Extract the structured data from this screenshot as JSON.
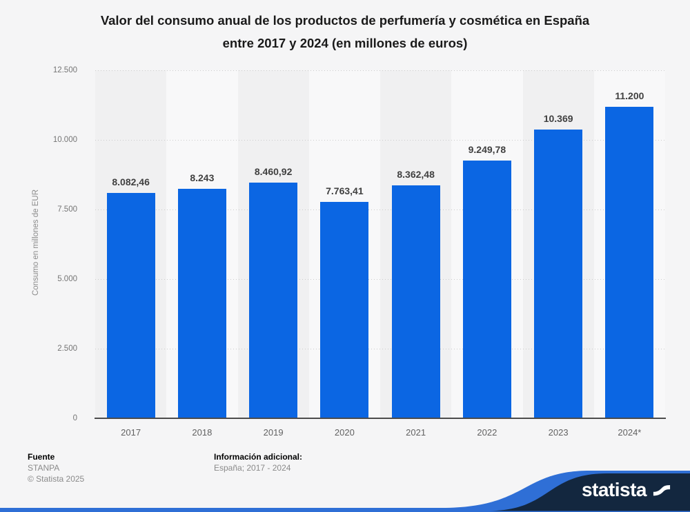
{
  "title": {
    "line1": "Valor del consumo anual de los productos de perfumería y cosmética en España",
    "line2": "entre 2017 y 2024 (en millones de euros)"
  },
  "chart_data": {
    "type": "bar",
    "title": "Valor del consumo anual de los productos de perfumería y cosmética en España entre 2017 y 2024 (en millones de euros)",
    "categories": [
      "2017",
      "2018",
      "2019",
      "2020",
      "2021",
      "2022",
      "2023",
      "2024*"
    ],
    "values": [
      8082.46,
      8243,
      8460.92,
      7763.41,
      8362.48,
      9249.78,
      10369,
      11200
    ],
    "value_labels": [
      "8.082,46",
      "8.243",
      "8.460,92",
      "7.763,41",
      "8.362,48",
      "9.249,78",
      "10.369",
      "11.200"
    ],
    "xlabel": "",
    "ylabel": "Consumo en millones de EUR",
    "ylim": [
      0,
      12500
    ],
    "ytick_values": [
      12500,
      10000,
      7500,
      5000,
      2500,
      0
    ],
    "ytick_labels": [
      "12.500",
      "10.000",
      "7.500",
      "5.000",
      "2.500",
      "0"
    ],
    "grid": "horizontal-dotted",
    "legend": "none"
  },
  "footer": {
    "source_label": "Fuente",
    "source": "STANPA",
    "copyright": "© Statista 2025",
    "info_label": "Información adicional:",
    "info_value": "España; 2017 - 2024"
  },
  "banner": {
    "logo_text": "statista"
  },
  "colors": {
    "bar": "#0b66e3",
    "background": "#f5f5f6",
    "band_dark": "#f0f0f1",
    "band_light": "#f8f8f9",
    "gridline": "#cbcbcb",
    "axis_line": "#4b4b4b",
    "banner_navy": "#13273f",
    "banner_blue": "#2f6fd6",
    "logo_white": "#ffffff"
  }
}
